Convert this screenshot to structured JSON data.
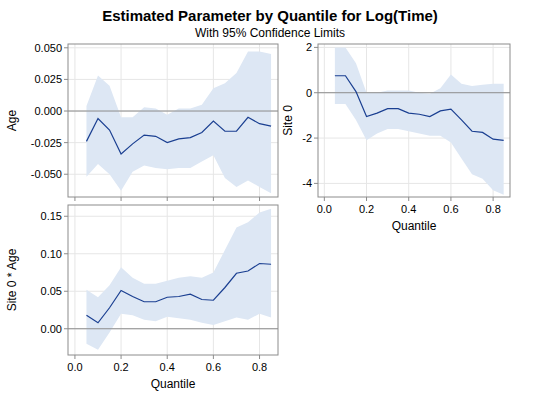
{
  "chart_data": {
    "type": "band",
    "title": "Estimated Parameter by Quantile for Log(Time)",
    "subtitle": "With 95% Confidence Limits",
    "x": [
      0.05,
      0.1,
      0.15,
      0.2,
      0.25,
      0.3,
      0.35,
      0.4,
      0.45,
      0.5,
      0.55,
      0.6,
      0.65,
      0.7,
      0.75,
      0.8,
      0.85
    ],
    "xlim": [
      -0.03,
      0.88
    ],
    "xticks": [
      {
        "value": 0,
        "label": "0.0"
      },
      {
        "value": 0.2,
        "label": "0.2"
      },
      {
        "value": 0.4,
        "label": "0.4"
      },
      {
        "value": 0.6,
        "label": "0.6"
      },
      {
        "value": 0.8,
        "label": "0.8"
      }
    ],
    "grid": true,
    "color": "#1a3f91",
    "panels": [
      {
        "y_label": "Age",
        "tick_labels": "y",
        "ylim": [
          -0.068,
          0.053
        ],
        "yticks": [
          {
            "value": -0.05,
            "label": "-0.050"
          },
          {
            "value": -0.025,
            "label": "-0.025"
          },
          {
            "value": 0,
            "label": "0.000"
          },
          {
            "value": 0.025,
            "label": "0.025"
          },
          {
            "value": 0.05,
            "label": "0.050"
          }
        ],
        "reference": 0,
        "values": [
          -0.024,
          -0.006,
          -0.015,
          -0.034,
          -0.026,
          -0.019,
          -0.02,
          -0.025,
          -0.022,
          -0.021,
          -0.017,
          -0.008,
          -0.016,
          -0.016,
          -0.005,
          -0.01,
          -0.012
        ],
        "lower": [
          -0.052,
          -0.042,
          -0.05,
          -0.063,
          -0.048,
          -0.043,
          -0.045,
          -0.046,
          -0.045,
          -0.045,
          -0.04,
          -0.035,
          -0.053,
          -0.06,
          -0.055,
          -0.06,
          -0.065
        ],
        "upper": [
          0.004,
          0.028,
          0.02,
          -0.005,
          -0.005,
          0.003,
          0.002,
          -0.003,
          0.002,
          0.002,
          0.005,
          0.018,
          0.022,
          0.03,
          0.047,
          0.047,
          0.045
        ]
      },
      {
        "y_label": "Site 0",
        "x_label": "Quantile",
        "ylim": [
          -4.6,
          2.15
        ],
        "yticks": [
          -4,
          -2,
          0,
          2
        ],
        "reference": 0,
        "values": [
          0.75,
          0.75,
          0.05,
          -1.05,
          -0.9,
          -0.7,
          -0.7,
          -0.9,
          -0.95,
          -1.05,
          -0.8,
          -0.72,
          -1.2,
          -1.7,
          -1.75,
          -2.05,
          -2.1
        ],
        "lower": [
          -0.5,
          -0.5,
          -1.2,
          -2.1,
          -1.8,
          -1.6,
          -1.6,
          -1.7,
          -1.8,
          -1.9,
          -1.9,
          -2.2,
          -2.9,
          -3.6,
          -3.8,
          -4.3,
          -4.5
        ],
        "upper": [
          2.0,
          2.0,
          1.3,
          0.0,
          0.0,
          0.1,
          0.1,
          0.1,
          0.0,
          -0.05,
          0.2,
          0.8,
          0.4,
          0.3,
          0.35,
          0.4,
          0.4
        ]
      },
      {
        "y_label": "Site 0 * Age",
        "x_label": "Quantile",
        "ylim": [
          -0.035,
          0.165
        ],
        "yticks": [
          {
            "value": 0,
            "label": "0.00"
          },
          {
            "value": 0.05,
            "label": "0.05"
          },
          {
            "value": 0.1,
            "label": "0.10"
          },
          {
            "value": 0.15,
            "label": "0.15"
          }
        ],
        "reference": 0,
        "values": [
          0.018,
          0.008,
          0.028,
          0.051,
          0.043,
          0.036,
          0.036,
          0.042,
          0.043,
          0.046,
          0.039,
          0.038,
          0.055,
          0.074,
          0.077,
          0.087,
          0.086
        ],
        "lower": [
          -0.02,
          -0.028,
          -0.005,
          0.02,
          0.018,
          0.012,
          0.01,
          0.016,
          0.014,
          0.012,
          0.008,
          0.005,
          0.01,
          0.015,
          0.012,
          0.02,
          0.015
        ],
        "upper": [
          0.052,
          0.042,
          0.058,
          0.082,
          0.068,
          0.06,
          0.06,
          0.064,
          0.068,
          0.07,
          0.068,
          0.075,
          0.105,
          0.135,
          0.142,
          0.155,
          0.16
        ]
      }
    ]
  }
}
